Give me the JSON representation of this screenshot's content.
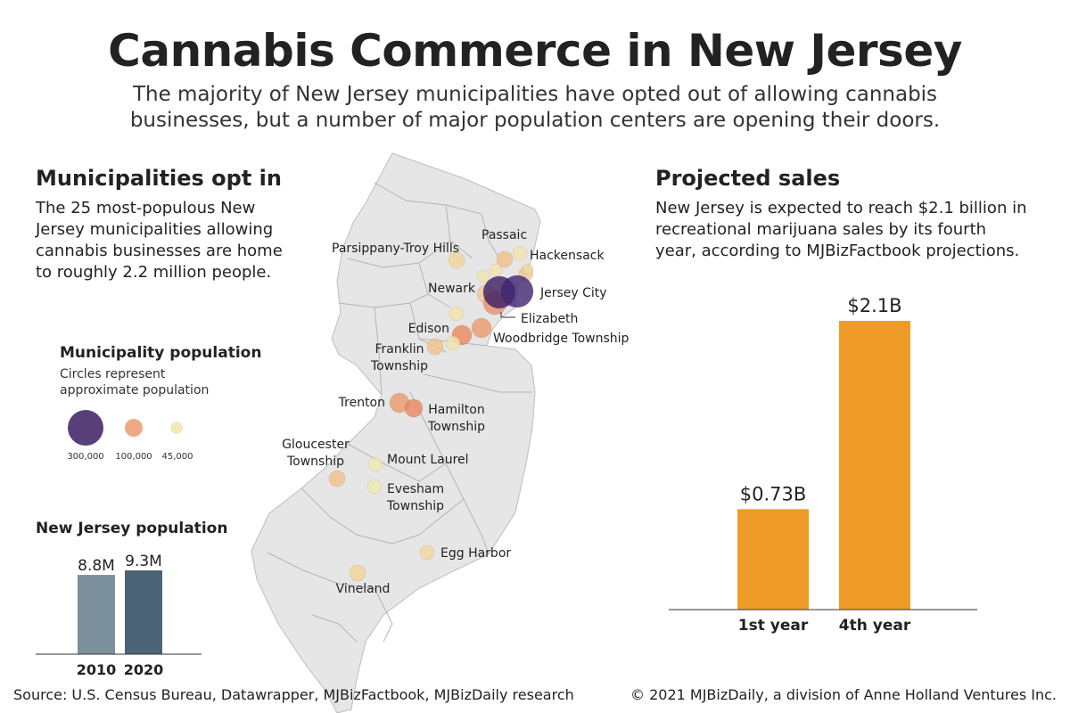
{
  "title": "Cannabis Commerce in New Jersey",
  "subtitle": "The majority of New Jersey municipalities have opted out of allowing cannabis businesses, but a number of major population centers are opening their doors.",
  "left": {
    "heading": "Municipalities opt in",
    "body": "The 25 most-populous New Jersey municipalities allowing cannabis businesses are home to roughly 2.2 million people."
  },
  "legend": {
    "heading": "Municipality population",
    "note": "Circles represent approximate population",
    "items": [
      {
        "label": "300,000",
        "color": "#3b1d63"
      },
      {
        "label": "100,000",
        "color": "#ec9a6e"
      },
      {
        "label": "45,000",
        "color": "#eeeab0"
      }
    ]
  },
  "population": {
    "heading": "New Jersey population",
    "chart_data": {
      "type": "bar",
      "categories": [
        "2010",
        "2020"
      ],
      "values": [
        8.8,
        9.3
      ],
      "value_labels": [
        "8.8M",
        "9.3M"
      ],
      "colors": [
        "#7c909d",
        "#4d6478"
      ],
      "ylim": [
        0,
        9.3
      ]
    }
  },
  "sales": {
    "heading": "Projected sales",
    "body": "New Jersey is expected to reach $2.1 billion in recreational marijuana sales by its fourth year, according to MJBizFactbook projections.",
    "chart_data": {
      "type": "bar",
      "categories": [
        "1st year",
        "4th year"
      ],
      "values": [
        0.73,
        2.1
      ],
      "value_labels": [
        "$0.73B",
        "$2.1B"
      ],
      "color": "#ee9c27",
      "ylim": [
        0,
        2.1
      ]
    }
  },
  "map": {
    "fill": "#e6e6e6",
    "places": [
      {
        "name": "Parsippany-Troy Hills"
      },
      {
        "name": "Passaic"
      },
      {
        "name": "Hackensack"
      },
      {
        "name": "Newark"
      },
      {
        "name": "Jersey City"
      },
      {
        "name": "Elizabeth"
      },
      {
        "name": "Edison"
      },
      {
        "name": "Woodbridge Township"
      },
      {
        "name": "Franklin Township"
      },
      {
        "name": "Trenton"
      },
      {
        "name": "Hamilton Township"
      },
      {
        "name": "Gloucester Township"
      },
      {
        "name": "Mount Laurel"
      },
      {
        "name": "Evesham Township"
      },
      {
        "name": "Egg Harbor"
      },
      {
        "name": "Vineland"
      }
    ]
  },
  "footer": {
    "source": "Source: U.S. Census Bureau, Datawrapper, MJBizFactbook, MJBizDaily research",
    "copyright": "© 2021 MJBizDaily, a division of Anne Holland Ventures Inc."
  }
}
